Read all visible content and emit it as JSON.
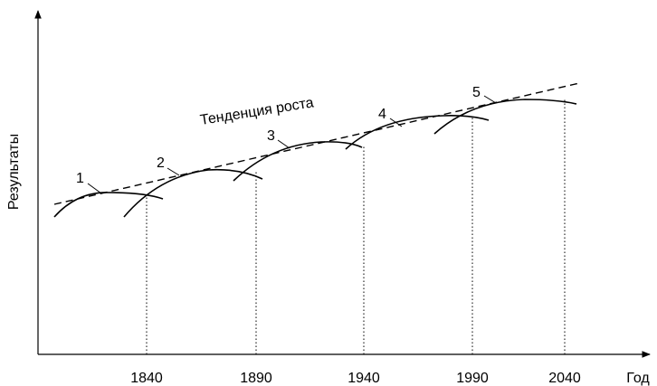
{
  "y_axis_label": "Результаты",
  "x_axis_label": "Год",
  "x_tick_labels": [
    "1840",
    "1890",
    "1940",
    "1990",
    "2040"
  ],
  "trend_label": "Тенденция роста",
  "curve_labels": [
    "1",
    "2",
    "3",
    "4",
    "5"
  ]
}
